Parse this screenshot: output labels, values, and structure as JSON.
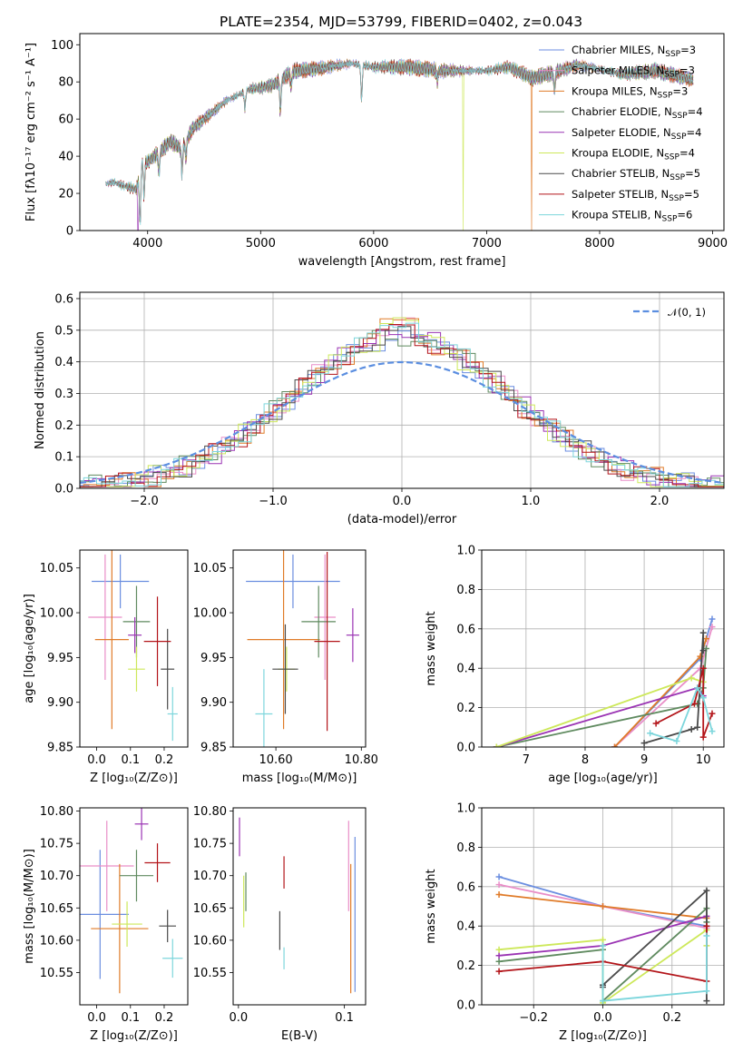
{
  "figure_title": "PLATE=2354, MJD=53799, FIBERID=0402, z=0.043",
  "colors": {
    "Chabrier MILES": "#6b8ee0",
    "Salpeter MILES": "#e98ec8",
    "Kroupa MILES": "#e07b28",
    "Chabrier ELODIE": "#5f8a5f",
    "Salpeter ELODIE": "#9a33b3",
    "Kroupa ELODIE": "#cde85a",
    "Chabrier STELIB": "#4a4a4a",
    "Salpeter STELIB": "#b3151a",
    "Kroupa STELIB": "#7dd6dc",
    "normal_curve": "#5b8ee0"
  },
  "chart_data": [
    {
      "id": "spectrum",
      "type": "line",
      "title": "PLATE=2354, MJD=53799, FIBERID=0402, z=0.043",
      "xlabel": "wavelength [Angstrom, rest frame]",
      "ylabel": "Flux [fλ10⁻¹⁷ erg cm⁻² s⁻¹ A⁻¹]",
      "xlim": [
        3400,
        9100
      ],
      "ylim": [
        0,
        106
      ],
      "xticks": [
        4000,
        5000,
        6000,
        7000,
        8000,
        9000
      ],
      "yticks": [
        0,
        20,
        40,
        60,
        80,
        100
      ],
      "grid": false,
      "legend_position": "upper-right",
      "legend": [
        {
          "label": "Chabrier MILES, N",
          "sub": "SSP",
          "suffix": "=3",
          "color": "#6b8ee0"
        },
        {
          "label": "Salpeter MILES, N",
          "sub": "SSP",
          "suffix": "=3",
          "color": "#e98ec8"
        },
        {
          "label": "Kroupa MILES, N",
          "sub": "SSP",
          "suffix": "=3",
          "color": "#e07b28"
        },
        {
          "label": "Chabrier ELODIE, N",
          "sub": "SSP",
          "suffix": "=4",
          "color": "#5f8a5f"
        },
        {
          "label": "Salpeter ELODIE, N",
          "sub": "SSP",
          "suffix": "=4",
          "color": "#9a33b3"
        },
        {
          "label": "Kroupa ELODIE, N",
          "sub": "SSP",
          "suffix": "=4",
          "color": "#cde85a"
        },
        {
          "label": "Chabrier STELIB, N",
          "sub": "SSP",
          "suffix": "=5",
          "color": "#4a4a4a"
        },
        {
          "label": "Salpeter STELIB, N",
          "sub": "SSP",
          "suffix": "=5",
          "color": "#b3151a"
        },
        {
          "label": "Kroupa STELIB, N",
          "sub": "SSP",
          "suffix": "=6",
          "color": "#7dd6dc"
        }
      ],
      "continuum_knots": {
        "x": [
          3630,
          3700,
          3800,
          3900,
          3950,
          4000,
          4100,
          4200,
          4300,
          4400,
          4500,
          4700,
          4900,
          5100,
          5300,
          5500,
          5800,
          6000,
          6300,
          6600,
          6800,
          7000,
          7200,
          7400,
          7600,
          7800,
          8000,
          8200,
          8500,
          8830
        ],
        "y": [
          25,
          26,
          24,
          22,
          37,
          37,
          42,
          48,
          44,
          55,
          60,
          70,
          76,
          78,
          86,
          87,
          90,
          88,
          88,
          86,
          86,
          86,
          88,
          82,
          85,
          89,
          87,
          84,
          86,
          81
        ]
      },
      "dips": [
        {
          "x": 3933,
          "depth": 30
        },
        {
          "x": 3968,
          "depth": 20
        },
        {
          "x": 4101,
          "depth": 12
        },
        {
          "x": 4304,
          "depth": 14
        },
        {
          "x": 4340,
          "depth": 10
        },
        {
          "x": 4861,
          "depth": 10
        },
        {
          "x": 5175,
          "depth": 18
        },
        {
          "x": 5270,
          "depth": 8
        },
        {
          "x": 5893,
          "depth": 20
        },
        {
          "x": 6563,
          "depth": 6
        },
        {
          "x": 7600,
          "depth": 10
        }
      ],
      "dropouts": [
        {
          "x": 3915,
          "color": "#9a33b3"
        },
        {
          "x": 6790,
          "color": "#cde85a"
        },
        {
          "x": 7400,
          "color": "#e07b28"
        }
      ]
    },
    {
      "id": "residual-histogram",
      "type": "histogram",
      "xlabel": "(data-model)/error",
      "ylabel": "Normed distribution",
      "xlim": [
        -2.5,
        2.5
      ],
      "ylim": [
        0,
        0.62
      ],
      "xticks": [
        -2,
        -1,
        0,
        1,
        2
      ],
      "yticks": [
        0.0,
        0.1,
        0.2,
        0.3,
        0.4,
        0.5,
        0.6
      ],
      "grid": true,
      "legend_position": "upper-right",
      "curve_label": "𝒩(0, 1)",
      "bin_width": 0.1,
      "peak": 0.48,
      "sigma": 0.85
    },
    {
      "id": "age-vs-Z",
      "type": "errorbar",
      "xlabel": "Z [log₁₀(Z/Z⊙)]",
      "ylabel": "age  [log₁₀(age/yr)]",
      "xlim": [
        -0.05,
        0.27
      ],
      "ylim": [
        9.85,
        10.07
      ],
      "xticks": [
        0.0,
        0.1,
        0.2
      ],
      "yticks": [
        9.85,
        9.9,
        9.95,
        10.0,
        10.05
      ],
      "grid": false,
      "points": [
        {
          "x": 0.07,
          "y": 10.035,
          "xerr": 0.085,
          "yerr": 0.03,
          "color": "#6b8ee0"
        },
        {
          "x": 0.025,
          "y": 9.995,
          "xerr": 0.05,
          "yerr": 0.07,
          "color": "#e98ec8"
        },
        {
          "x": 0.045,
          "y": 9.97,
          "xerr": 0.05,
          "yerr": 0.1,
          "color": "#e07b28"
        },
        {
          "x": 0.118,
          "y": 9.99,
          "xerr": 0.04,
          "yerr": 0.04,
          "color": "#5f8a5f"
        },
        {
          "x": 0.113,
          "y": 9.975,
          "xerr": 0.02,
          "yerr": 0.02,
          "color": "#9a33b3"
        },
        {
          "x": 0.118,
          "y": 9.937,
          "xerr": 0.025,
          "yerr": 0.025,
          "color": "#cde85a"
        },
        {
          "x": 0.21,
          "y": 9.937,
          "xerr": 0.02,
          "yerr": 0.045,
          "color": "#4a4a4a"
        },
        {
          "x": 0.18,
          "y": 9.968,
          "xerr": 0.04,
          "yerr": 0.05,
          "color": "#b3151a"
        },
        {
          "x": 0.225,
          "y": 9.887,
          "xerr": 0.015,
          "yerr": 0.03,
          "color": "#7dd6dc"
        }
      ]
    },
    {
      "id": "age-vs-mass",
      "type": "errorbar",
      "xlabel": "mass [log₁₀(M/M⊙)]",
      "ylabel": "",
      "xlim": [
        10.5,
        10.81
      ],
      "ylim": [
        9.85,
        10.07
      ],
      "xticks": [
        10.6,
        10.8
      ],
      "yticks": [
        9.85,
        9.9,
        9.95,
        10.0,
        10.05
      ],
      "grid": false,
      "points": [
        {
          "x": 10.64,
          "y": 10.035,
          "xerr": 0.11,
          "yerr": 0.03,
          "color": "#6b8ee0"
        },
        {
          "x": 10.715,
          "y": 9.995,
          "xerr": 0.025,
          "yerr": 0.07,
          "color": "#e98ec8"
        },
        {
          "x": 10.618,
          "y": 9.97,
          "xerr": 0.085,
          "yerr": 0.1,
          "color": "#e07b28"
        },
        {
          "x": 10.7,
          "y": 9.99,
          "xerr": 0.04,
          "yerr": 0.04,
          "color": "#5f8a5f"
        },
        {
          "x": 10.78,
          "y": 9.975,
          "xerr": 0.015,
          "yerr": 0.03,
          "color": "#9a33b3"
        },
        {
          "x": 10.625,
          "y": 9.937,
          "xerr": 0.02,
          "yerr": 0.025,
          "color": "#cde85a"
        },
        {
          "x": 10.622,
          "y": 9.937,
          "xerr": 0.03,
          "yerr": 0.05,
          "color": "#4a4a4a"
        },
        {
          "x": 10.72,
          "y": 9.968,
          "xerr": 0.03,
          "yerr": 0.1,
          "color": "#b3151a"
        },
        {
          "x": 10.572,
          "y": 9.887,
          "xerr": 0.02,
          "yerr": 0.05,
          "color": "#7dd6dc"
        }
      ]
    },
    {
      "id": "mass-weight-vs-age",
      "type": "line",
      "xlabel": "age  [log₁₀(age/yr)]",
      "ylabel": "mass weight",
      "xlim": [
        6.25,
        10.35
      ],
      "ylim": [
        0,
        1.0
      ],
      "xticks": [
        7,
        8,
        9,
        10
      ],
      "yticks": [
        0.0,
        0.2,
        0.4,
        0.6,
        0.8,
        1.0
      ],
      "grid": true,
      "series": [
        {
          "color": "#6b8ee0",
          "x": [
            8.5,
            9.95,
            10.15
          ],
          "y": [
            0.0,
            0.45,
            0.65
          ]
        },
        {
          "color": "#e98ec8",
          "x": [
            8.5,
            9.95,
            10.15
          ],
          "y": [
            0.0,
            0.4,
            0.61
          ]
        },
        {
          "color": "#e07b28",
          "x": [
            8.5,
            9.95,
            10.05
          ],
          "y": [
            0.0,
            0.46,
            0.55
          ]
        },
        {
          "color": "#5f8a5f",
          "x": [
            6.5,
            9.9,
            10.0,
            10.05
          ],
          "y": [
            0.0,
            0.22,
            0.3,
            0.5
          ]
        },
        {
          "color": "#9a33b3",
          "x": [
            6.5,
            9.9,
            10.0
          ],
          "y": [
            0.0,
            0.3,
            0.26
          ]
        },
        {
          "color": "#cde85a",
          "x": [
            6.5,
            9.8,
            10.0
          ],
          "y": [
            0.0,
            0.35,
            0.33
          ]
        },
        {
          "color": "#4a4a4a",
          "x": [
            9.0,
            9.8,
            9.9,
            10.0,
            10.0
          ],
          "y": [
            0.02,
            0.09,
            0.1,
            0.58,
            0.49
          ]
        },
        {
          "color": "#b3151a",
          "x": [
            9.2,
            9.85,
            10.0,
            10.0,
            10.15
          ],
          "y": [
            0.12,
            0.22,
            0.4,
            0.05,
            0.17
          ]
        },
        {
          "color": "#7dd6dc",
          "x": [
            9.1,
            9.55,
            9.9,
            10.0,
            10.15
          ],
          "y": [
            0.07,
            0.03,
            0.3,
            0.25,
            0.08
          ]
        }
      ]
    },
    {
      "id": "mass-vs-Z",
      "type": "errorbar",
      "xlabel": "Z [log₁₀(Z/Z⊙)]",
      "ylabel": "mass [log₁₀(M/M⊙)]",
      "xlim": [
        -0.05,
        0.27
      ],
      "ylim": [
        10.5,
        10.805
      ],
      "xticks": [
        0.0,
        0.1,
        0.2
      ],
      "yticks": [
        10.55,
        10.6,
        10.65,
        10.7,
        10.75,
        10.8
      ],
      "grid": false,
      "points": [
        {
          "x": 0.01,
          "y": 10.64,
          "xerr": 0.085,
          "yerr": 0.1,
          "color": "#6b8ee0"
        },
        {
          "x": 0.03,
          "y": 10.715,
          "xerr": 0.08,
          "yerr": 0.07,
          "color": "#e98ec8"
        },
        {
          "x": 0.068,
          "y": 10.618,
          "xerr": 0.085,
          "yerr": 0.1,
          "color": "#e07b28"
        },
        {
          "x": 0.118,
          "y": 10.7,
          "xerr": 0.05,
          "yerr": 0.04,
          "color": "#5f8a5f"
        },
        {
          "x": 0.133,
          "y": 10.78,
          "xerr": 0.02,
          "yerr": 0.025,
          "color": "#9a33b3"
        },
        {
          "x": 0.09,
          "y": 10.625,
          "xerr": 0.045,
          "yerr": 0.035,
          "color": "#cde85a"
        },
        {
          "x": 0.21,
          "y": 10.622,
          "xerr": 0.025,
          "yerr": 0.025,
          "color": "#4a4a4a"
        },
        {
          "x": 0.18,
          "y": 10.72,
          "xerr": 0.038,
          "yerr": 0.03,
          "color": "#b3151a"
        },
        {
          "x": 0.225,
          "y": 10.572,
          "xerr": 0.03,
          "yerr": 0.03,
          "color": "#7dd6dc"
        }
      ]
    },
    {
      "id": "mass-vs-EBV",
      "type": "errorbar",
      "xlabel": "E(B-V)",
      "ylabel": "",
      "xlim": [
        -0.005,
        0.12
      ],
      "ylim": [
        10.5,
        10.805
      ],
      "xticks": [
        0.0,
        0.1
      ],
      "yticks": [
        10.55,
        10.6,
        10.65,
        10.7,
        10.75,
        10.8
      ],
      "grid": false,
      "points": [
        {
          "x": 0.11,
          "y": 10.64,
          "xerr": 0,
          "yerr": 0.12,
          "color": "#6b8ee0"
        },
        {
          "x": 0.104,
          "y": 10.715,
          "xerr": 0,
          "yerr": 0.07,
          "color": "#e98ec8"
        },
        {
          "x": 0.106,
          "y": 10.618,
          "xerr": 0,
          "yerr": 0.1,
          "color": "#e07b28"
        },
        {
          "x": 0.007,
          "y": 10.675,
          "xerr": 0,
          "yerr": 0.03,
          "color": "#5f8a5f"
        },
        {
          "x": 0.001,
          "y": 10.76,
          "xerr": 0,
          "yerr": 0.03,
          "color": "#9a33b3"
        },
        {
          "x": 0.005,
          "y": 10.66,
          "xerr": 0,
          "yerr": 0.04,
          "color": "#cde85a"
        },
        {
          "x": 0.039,
          "y": 10.615,
          "xerr": 0,
          "yerr": 0.03,
          "color": "#4a4a4a"
        },
        {
          "x": 0.043,
          "y": 10.705,
          "xerr": 0,
          "yerr": 0.025,
          "color": "#b3151a"
        },
        {
          "x": 0.043,
          "y": 10.572,
          "xerr": 0,
          "yerr": 0.017,
          "color": "#7dd6dc"
        }
      ]
    },
    {
      "id": "mass-weight-vs-Z",
      "type": "line",
      "xlabel": "Z [log₁₀(Z/Z⊙)]",
      "ylabel": "mass weight",
      "xlim": [
        -0.35,
        0.35
      ],
      "ylim": [
        0,
        1.0
      ],
      "xticks": [
        -0.2,
        0.0,
        0.2
      ],
      "yticks": [
        0.0,
        0.2,
        0.4,
        0.6,
        0.8,
        1.0
      ],
      "grid": true,
      "series": [
        {
          "color": "#6b8ee0",
          "x": [
            -0.3,
            0.0,
            0.3
          ],
          "y": [
            0.65,
            0.5,
            0.4
          ]
        },
        {
          "color": "#e98ec8",
          "x": [
            -0.3,
            0.0,
            0.3
          ],
          "y": [
            0.61,
            0.5,
            0.39
          ]
        },
        {
          "color": "#e07b28",
          "x": [
            -0.3,
            0.0,
            0.3
          ],
          "y": [
            0.56,
            0.5,
            0.44
          ]
        },
        {
          "color": "#5f8a5f",
          "x": [
            -0.3,
            0.0,
            0.0,
            0.3,
            0.3
          ],
          "y": [
            0.22,
            0.28,
            0.02,
            0.49,
            0.42
          ]
        },
        {
          "color": "#9a33b3",
          "x": [
            -0.3,
            0.0,
            0.3
          ],
          "y": [
            0.25,
            0.3,
            0.45
          ]
        },
        {
          "color": "#cde85a",
          "x": [
            -0.3,
            0.0,
            0.0,
            0.3,
            0.3
          ],
          "y": [
            0.28,
            0.33,
            0.01,
            0.38,
            0.3
          ]
        },
        {
          "color": "#4a4a4a",
          "x": [
            0.0,
            0.0,
            0.3,
            0.3
          ],
          "y": [
            0.09,
            0.1,
            0.58,
            0.02
          ]
        },
        {
          "color": "#b3151a",
          "x": [
            -0.3,
            0.0,
            0.3,
            0.3
          ],
          "y": [
            0.17,
            0.22,
            0.12,
            0.4
          ]
        },
        {
          "color": "#7dd6dc",
          "x": [
            0.0,
            0.0,
            0.3,
            0.3
          ],
          "y": [
            0.3,
            0.02,
            0.07,
            0.35
          ]
        }
      ]
    }
  ]
}
